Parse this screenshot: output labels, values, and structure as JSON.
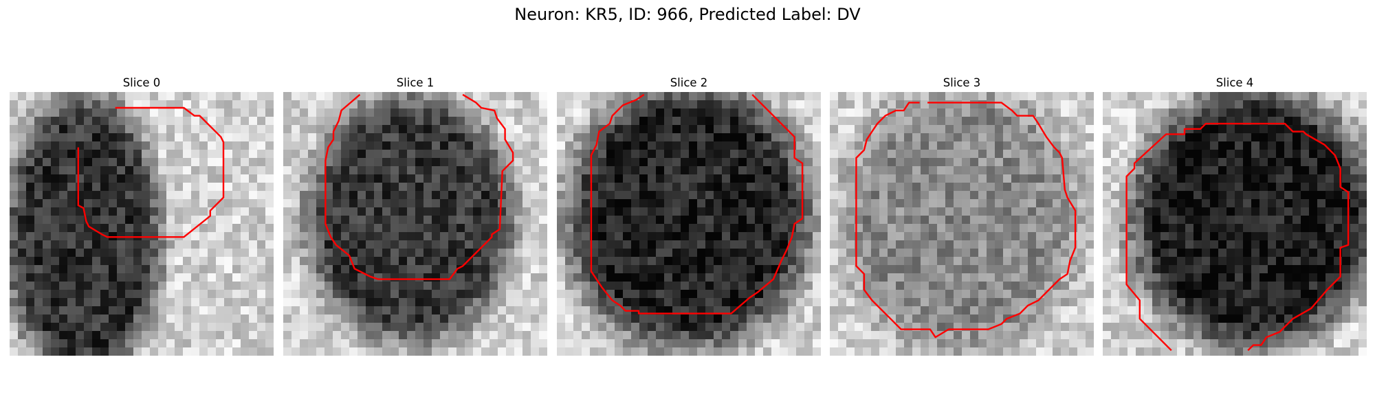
{
  "figure": {
    "title": "Neuron: KR5, ID: 966, Predicted Label: DV",
    "contour_color": "#ff0000",
    "slices": [
      {
        "title": "Slice 0",
        "background": "light",
        "blob": [
          0.28,
          0.55,
          0.3,
          0.55
        ],
        "blob_darkness": 0.62,
        "contour": [
          [
            0.4,
            0.06
          ],
          [
            0.66,
            0.06
          ],
          [
            0.7,
            0.09
          ],
          [
            0.72,
            0.09
          ],
          [
            0.8,
            0.17
          ],
          [
            0.81,
            0.19
          ],
          [
            0.81,
            0.4
          ],
          [
            0.76,
            0.45
          ],
          [
            0.76,
            0.47
          ],
          [
            0.66,
            0.55
          ],
          [
            0.37,
            0.55
          ],
          [
            0.35,
            0.54
          ],
          [
            0.3,
            0.51
          ],
          [
            0.29,
            0.49
          ],
          [
            0.28,
            0.44
          ],
          [
            0.26,
            0.43
          ],
          [
            0.26,
            0.21
          ]
        ]
      },
      {
        "title": "Slice 1",
        "background": "light",
        "blob": [
          0.48,
          0.48,
          0.4,
          0.48
        ],
        "blob_darkness": 0.6,
        "contour": [
          [
            0.29,
            0.01
          ],
          [
            0.22,
            0.07
          ],
          [
            0.21,
            0.11
          ],
          [
            0.19,
            0.15
          ],
          [
            0.19,
            0.18
          ],
          [
            0.17,
            0.21
          ],
          [
            0.16,
            0.26
          ],
          [
            0.16,
            0.5
          ],
          [
            0.18,
            0.55
          ],
          [
            0.2,
            0.58
          ],
          [
            0.25,
            0.62
          ],
          [
            0.27,
            0.67
          ],
          [
            0.31,
            0.69
          ],
          [
            0.33,
            0.7
          ],
          [
            0.36,
            0.71
          ],
          [
            0.63,
            0.71
          ],
          [
            0.66,
            0.67
          ],
          [
            0.68,
            0.66
          ],
          [
            0.79,
            0.55
          ],
          [
            0.79,
            0.54
          ],
          [
            0.82,
            0.52
          ],
          [
            0.83,
            0.3
          ],
          [
            0.85,
            0.28
          ],
          [
            0.87,
            0.26
          ],
          [
            0.87,
            0.23
          ],
          [
            0.84,
            0.18
          ],
          [
            0.84,
            0.14
          ],
          [
            0.81,
            0.1
          ],
          [
            0.8,
            0.07
          ],
          [
            0.75,
            0.06
          ],
          [
            0.73,
            0.04
          ],
          [
            0.68,
            0.01
          ]
        ]
      },
      {
        "title": "Slice 2",
        "background": "light",
        "blob": [
          0.5,
          0.47,
          0.47,
          0.51
        ],
        "blob_darkness": 0.68,
        "contour": [
          [
            0.33,
            0.01
          ],
          [
            0.3,
            0.03
          ],
          [
            0.25,
            0.05
          ],
          [
            0.21,
            0.09
          ],
          [
            0.2,
            0.12
          ],
          [
            0.16,
            0.15
          ],
          [
            0.15,
            0.2
          ],
          [
            0.13,
            0.24
          ],
          [
            0.13,
            0.68
          ],
          [
            0.17,
            0.74
          ],
          [
            0.21,
            0.79
          ],
          [
            0.24,
            0.81
          ],
          [
            0.26,
            0.83
          ],
          [
            0.31,
            0.83
          ],
          [
            0.31,
            0.84
          ],
          [
            0.66,
            0.84
          ],
          [
            0.73,
            0.78
          ],
          [
            0.76,
            0.76
          ],
          [
            0.82,
            0.71
          ],
          [
            0.85,
            0.64
          ],
          [
            0.87,
            0.6
          ],
          [
            0.89,
            0.55
          ],
          [
            0.9,
            0.5
          ],
          [
            0.93,
            0.48
          ],
          [
            0.93,
            0.27
          ],
          [
            0.9,
            0.25
          ],
          [
            0.9,
            0.17
          ],
          [
            0.74,
            0.01
          ]
        ]
      },
      {
        "title": "Slice 3",
        "background": "light",
        "blob": [
          0.5,
          0.48,
          0.46,
          0.52
        ],
        "blob_darkness": 0.28,
        "contour": [
          [
            0.37,
            0.04
          ],
          [
            0.65,
            0.04
          ],
          [
            0.69,
            0.07
          ],
          [
            0.71,
            0.09
          ],
          [
            0.77,
            0.09
          ],
          [
            0.79,
            0.12
          ],
          [
            0.82,
            0.17
          ],
          [
            0.85,
            0.21
          ],
          [
            0.87,
            0.23
          ],
          [
            0.88,
            0.25
          ],
          [
            0.89,
            0.37
          ],
          [
            0.9,
            0.4
          ],
          [
            0.93,
            0.45
          ],
          [
            0.93,
            0.59
          ],
          [
            0.91,
            0.64
          ],
          [
            0.9,
            0.69
          ],
          [
            0.87,
            0.71
          ],
          [
            0.83,
            0.75
          ],
          [
            0.79,
            0.79
          ],
          [
            0.75,
            0.81
          ],
          [
            0.72,
            0.84
          ],
          [
            0.67,
            0.86
          ],
          [
            0.65,
            0.88
          ],
          [
            0.6,
            0.9
          ],
          [
            0.45,
            0.9
          ],
          [
            0.4,
            0.93
          ],
          [
            0.38,
            0.9
          ],
          [
            0.27,
            0.9
          ],
          [
            0.23,
            0.86
          ],
          [
            0.16,
            0.79
          ],
          [
            0.13,
            0.75
          ],
          [
            0.13,
            0.69
          ],
          [
            0.1,
            0.66
          ],
          [
            0.1,
            0.25
          ],
          [
            0.13,
            0.22
          ],
          [
            0.14,
            0.18
          ],
          [
            0.16,
            0.15
          ],
          [
            0.18,
            0.12
          ],
          [
            0.21,
            0.09
          ],
          [
            0.25,
            0.07
          ],
          [
            0.28,
            0.07
          ],
          [
            0.3,
            0.04
          ],
          [
            0.34,
            0.04
          ]
        ]
      },
      {
        "title": "Slice 4",
        "background": "light",
        "blob": [
          0.57,
          0.48,
          0.47,
          0.5
        ],
        "blob_darkness": 0.7,
        "contour": [
          [
            0.26,
            0.98
          ],
          [
            0.14,
            0.86
          ],
          [
            0.14,
            0.79
          ],
          [
            0.09,
            0.73
          ],
          [
            0.09,
            0.32
          ],
          [
            0.12,
            0.29
          ],
          [
            0.12,
            0.27
          ],
          [
            0.24,
            0.16
          ],
          [
            0.31,
            0.16
          ],
          [
            0.31,
            0.14
          ],
          [
            0.37,
            0.14
          ],
          [
            0.39,
            0.12
          ],
          [
            0.69,
            0.12
          ],
          [
            0.72,
            0.15
          ],
          [
            0.76,
            0.15
          ],
          [
            0.77,
            0.16
          ],
          [
            0.84,
            0.2
          ],
          [
            0.88,
            0.24
          ],
          [
            0.9,
            0.29
          ],
          [
            0.9,
            0.36
          ],
          [
            0.93,
            0.38
          ],
          [
            0.93,
            0.58
          ],
          [
            0.9,
            0.59
          ],
          [
            0.9,
            0.7
          ],
          [
            0.85,
            0.75
          ],
          [
            0.79,
            0.82
          ],
          [
            0.72,
            0.86
          ],
          [
            0.67,
            0.91
          ],
          [
            0.62,
            0.93
          ],
          [
            0.6,
            0.96
          ],
          [
            0.57,
            0.96
          ],
          [
            0.55,
            0.98
          ]
        ]
      }
    ]
  }
}
